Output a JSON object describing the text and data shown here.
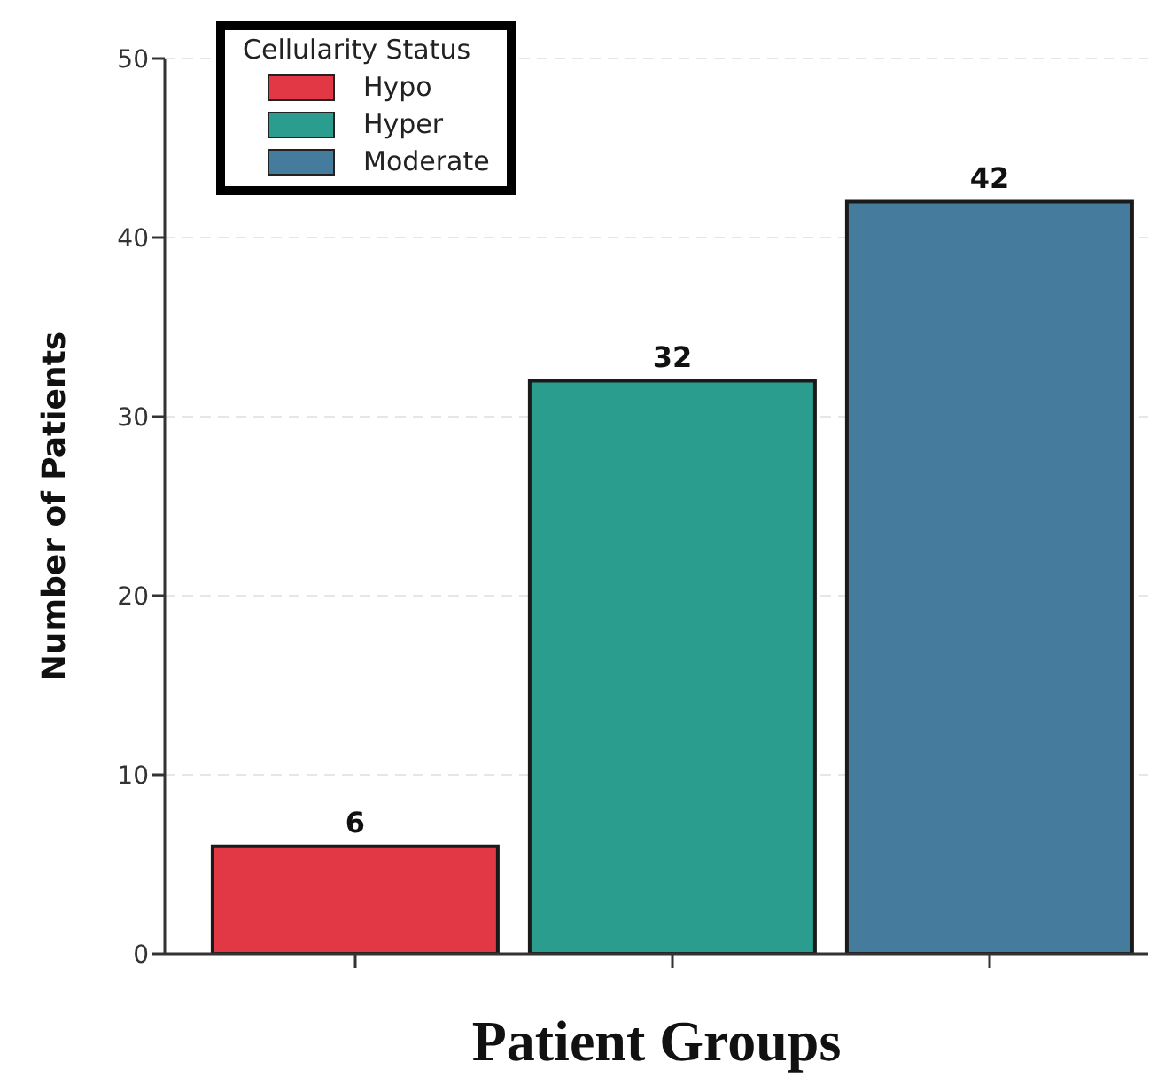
{
  "chart_data": {
    "type": "bar",
    "xlabel": "Patient Groups",
    "ylabel": "Number of Patients",
    "legend_title": "Cellularity Status",
    "categories": [
      null,
      null,
      null
    ],
    "stacked": true,
    "series": [
      {
        "name": "Hypo",
        "color": "#e23744",
        "values": [
          6,
          null,
          null
        ]
      },
      {
        "name": "Hyper",
        "color": "#2a9d8f",
        "values": [
          null,
          32,
          null
        ]
      },
      {
        "name": "Moderate",
        "color": "#457b9d",
        "values": [
          null,
          null,
          42
        ]
      }
    ],
    "ylim": [
      0,
      50
    ],
    "yticks": [
      0,
      10,
      20,
      30,
      40,
      50
    ],
    "grid": "y",
    "legend": "top left",
    "data_labels": true,
    "tick_labels": "y"
  }
}
